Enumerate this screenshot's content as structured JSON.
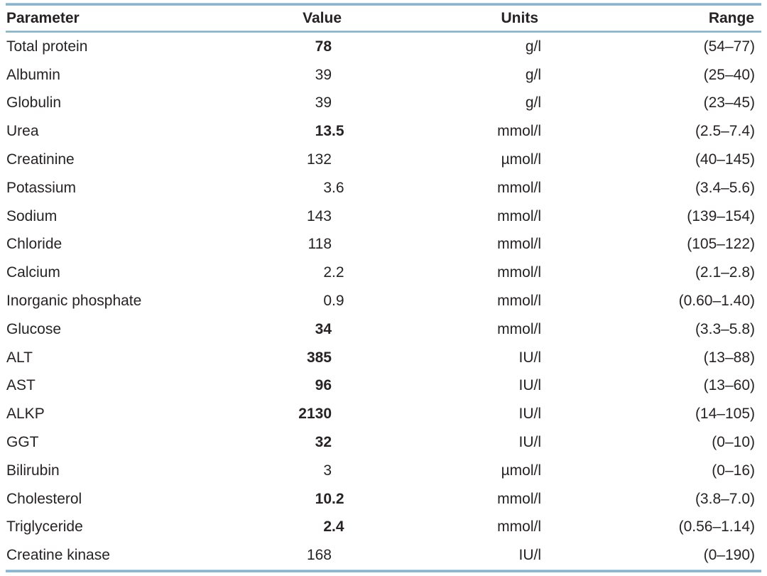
{
  "colors": {
    "accent_line": "#7aadc8",
    "text": "#272324",
    "background": "#ffffff"
  },
  "table": {
    "columns": [
      "Parameter",
      "Value",
      "Units",
      "Range"
    ],
    "rows": [
      {
        "parameter": "Total protein",
        "value": "78",
        "bold": true,
        "units": "g/l",
        "range": "(54–77)"
      },
      {
        "parameter": "Albumin",
        "value": "39",
        "bold": false,
        "units": "g/l",
        "range": "(25–40)"
      },
      {
        "parameter": "Globulin",
        "value": "39",
        "bold": false,
        "units": "g/l",
        "range": "(23–45)"
      },
      {
        "parameter": "Urea",
        "value": "13.5",
        "bold": true,
        "units": "mmol/l",
        "range": "(2.5–7.4)"
      },
      {
        "parameter": "Creatinine",
        "value": "132",
        "bold": false,
        "units": "µmol/l",
        "range": "(40–145)"
      },
      {
        "parameter": "Potassium",
        "value": "3.6",
        "bold": false,
        "units": "mmol/l",
        "range": "(3.4–5.6)"
      },
      {
        "parameter": "Sodium",
        "value": "143",
        "bold": false,
        "units": "mmol/l",
        "range": "(139–154)"
      },
      {
        "parameter": "Chloride",
        "value": "118",
        "bold": false,
        "units": "mmol/l",
        "range": "(105–122)"
      },
      {
        "parameter": "Calcium",
        "value": "2.2",
        "bold": false,
        "units": "mmol/l",
        "range": "(2.1–2.8)"
      },
      {
        "parameter": "Inorganic phosphate",
        "value": "0.9",
        "bold": false,
        "units": "mmol/l",
        "range": "(0.60–1.40)"
      },
      {
        "parameter": "Glucose",
        "value": "34",
        "bold": true,
        "units": "mmol/l",
        "range": "(3.3–5.8)"
      },
      {
        "parameter": "ALT",
        "value": "385",
        "bold": true,
        "units": "IU/l",
        "range": "(13–88)"
      },
      {
        "parameter": "AST",
        "value": "96",
        "bold": true,
        "units": "IU/l",
        "range": "(13–60)"
      },
      {
        "parameter": "ALKP",
        "value": "2130",
        "bold": true,
        "units": "IU/l",
        "range": "(14–105)"
      },
      {
        "parameter": "GGT",
        "value": "32",
        "bold": true,
        "units": "IU/l",
        "range": "(0–10)"
      },
      {
        "parameter": "Bilirubin",
        "value": "3",
        "bold": false,
        "units": "µmol/l",
        "range": "(0–16)"
      },
      {
        "parameter": "Cholesterol",
        "value": "10.2",
        "bold": true,
        "units": "mmol/l",
        "range": "(3.8–7.0)"
      },
      {
        "parameter": "Triglyceride",
        "value": "2.4",
        "bold": true,
        "units": "mmol/l",
        "range": "(0.56–1.14)"
      },
      {
        "parameter": "Creatine kinase",
        "value": "168",
        "bold": false,
        "units": "IU/l",
        "range": "(0–190)"
      }
    ]
  }
}
